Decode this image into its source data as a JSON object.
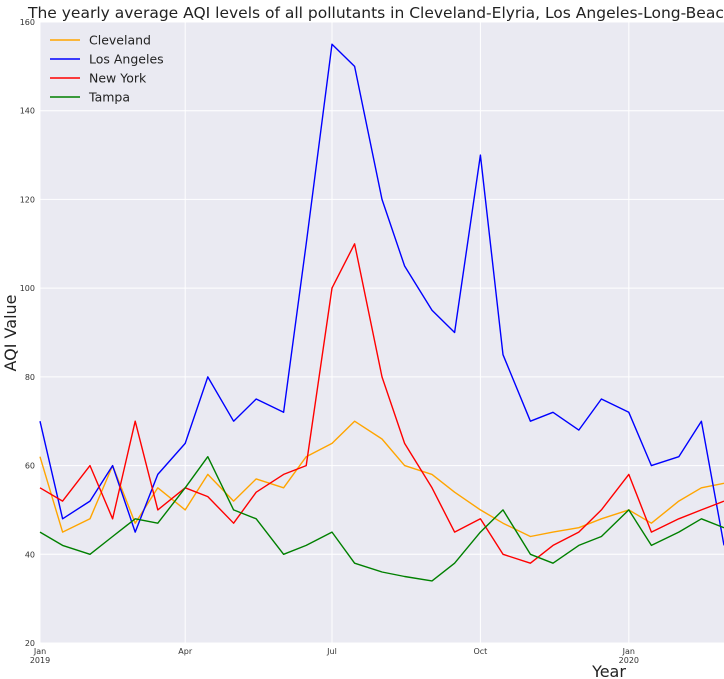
{
  "chart_data": {
    "type": "line",
    "title": "The yearly average AQI levels of all pollutants in Cleveland-Elyria, Los Angeles-Long-Beach-Anaheim, New York-Newark-Jersey City, Tampa-St. Petersburg-Clearwater",
    "xlabel": "Year",
    "ylabel": "AQI Value",
    "ylim": [
      20,
      160
    ],
    "xlim": [
      "2019-01-01",
      "2020-02-29"
    ],
    "y_ticks": [
      20,
      40,
      60,
      80,
      100,
      120,
      140,
      160
    ],
    "x_ticks": [
      {
        "date": "2019-01-01",
        "label": "Jan",
        "sublabel": "2019"
      },
      {
        "date": "2019-04-01",
        "label": "Apr",
        "sublabel": ""
      },
      {
        "date": "2019-07-01",
        "label": "Jul",
        "sublabel": ""
      },
      {
        "date": "2019-10-01",
        "label": "Oct",
        "sublabel": ""
      },
      {
        "date": "2020-01-01",
        "label": "Jan",
        "sublabel": "2020"
      }
    ],
    "grid": true,
    "legend_position": "top-left",
    "x": [
      "2019-01-01",
      "2019-01-15",
      "2019-02-01",
      "2019-02-15",
      "2019-03-01",
      "2019-03-15",
      "2019-04-01",
      "2019-04-15",
      "2019-05-01",
      "2019-05-15",
      "2019-06-01",
      "2019-06-15",
      "2019-07-01",
      "2019-07-15",
      "2019-08-01",
      "2019-08-15",
      "2019-09-01",
      "2019-09-15",
      "2019-10-01",
      "2019-10-15",
      "2019-11-01",
      "2019-11-15",
      "2019-12-01",
      "2019-12-15",
      "2020-01-01",
      "2020-01-15",
      "2020-02-01",
      "2020-02-15",
      "2020-02-29"
    ],
    "series": [
      {
        "name": "Cleveland",
        "color": "#ffa500",
        "values": [
          62,
          45,
          48,
          60,
          47,
          55,
          50,
          58,
          52,
          57,
          55,
          62,
          65,
          70,
          66,
          60,
          58,
          54,
          50,
          47,
          44,
          45,
          46,
          48,
          50,
          47,
          52,
          55,
          56
        ]
      },
      {
        "name": "Los Angeles",
        "color": "#0000ff",
        "values": [
          70,
          48,
          52,
          60,
          45,
          58,
          65,
          80,
          70,
          75,
          72,
          110,
          155,
          150,
          120,
          105,
          95,
          90,
          130,
          85,
          70,
          72,
          68,
          75,
          72,
          60,
          62,
          70,
          42
        ]
      },
      {
        "name": "New York",
        "color": "#ff0000",
        "values": [
          55,
          52,
          60,
          48,
          70,
          50,
          55,
          53,
          47,
          54,
          58,
          60,
          100,
          110,
          80,
          65,
          55,
          45,
          48,
          40,
          38,
          42,
          45,
          50,
          58,
          45,
          48,
          50,
          52
        ]
      },
      {
        "name": "Tampa",
        "color": "#008000",
        "values": [
          45,
          42,
          40,
          44,
          48,
          47,
          55,
          62,
          50,
          48,
          40,
          42,
          45,
          38,
          36,
          35,
          34,
          38,
          45,
          50,
          40,
          38,
          42,
          44,
          50,
          42,
          45,
          48,
          46
        ]
      }
    ]
  }
}
